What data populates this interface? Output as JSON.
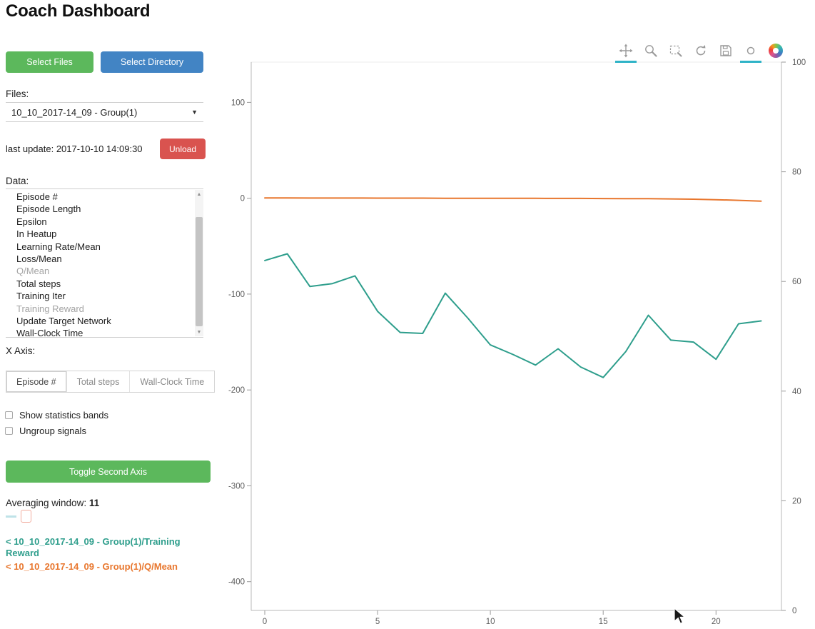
{
  "header": {
    "title": "Coach Dashboard"
  },
  "theme": {
    "green_button": "#5cb85c",
    "blue_button": "#4284c4",
    "red_button": "#d9534f",
    "accent_teal": "#2fb3c7",
    "series_teal": "#2e9e8c",
    "series_orange": "#e8762d"
  },
  "sidebar": {
    "select_files_label": "Select Files",
    "select_directory_label": "Select Directory",
    "files_label": "Files:",
    "files_selected": "10_10_2017-14_09 - Group(1)",
    "last_update": "last update: 2017-10-10 14:09:30",
    "unload_label": "Unload",
    "data_label": "Data:",
    "data_items": [
      {
        "label": "Episode #",
        "dimmed": false
      },
      {
        "label": "Episode Length",
        "dimmed": false
      },
      {
        "label": "Epsilon",
        "dimmed": false
      },
      {
        "label": "In Heatup",
        "dimmed": false
      },
      {
        "label": "Learning Rate/Mean",
        "dimmed": false
      },
      {
        "label": "Loss/Mean",
        "dimmed": false
      },
      {
        "label": "Q/Mean",
        "dimmed": true
      },
      {
        "label": "Total steps",
        "dimmed": false
      },
      {
        "label": "Training Iter",
        "dimmed": false
      },
      {
        "label": "Training Reward",
        "dimmed": true
      },
      {
        "label": "Update Target Network",
        "dimmed": false
      },
      {
        "label": "Wall-Clock Time",
        "dimmed": false
      }
    ],
    "x_axis_label": "X Axis:",
    "x_axis_options": [
      {
        "label": "Episode #",
        "active": true
      },
      {
        "label": "Total steps",
        "active": false
      },
      {
        "label": "Wall-Clock Time",
        "active": false
      }
    ],
    "checkboxes": [
      {
        "label": "Show statistics bands",
        "checked": false
      },
      {
        "label": "Ungroup signals",
        "checked": false
      }
    ],
    "toggle_second_axis_label": "Toggle Second Axis",
    "averaging_window_label": "Averaging window:",
    "averaging_window_value": "11",
    "legend": [
      {
        "label": "< 10_10_2017-14_09 - Group(1)/Training Reward",
        "color": "#2e9e8c"
      },
      {
        "label": "< 10_10_2017-14_09 - Group(1)/Q/Mean",
        "color": "#e8762d"
      }
    ]
  },
  "chart_toolbar": {
    "tools": [
      {
        "name": "pan",
        "active": true
      },
      {
        "name": "box-zoom",
        "active": false
      },
      {
        "name": "box-select",
        "active": false
      },
      {
        "name": "reset",
        "active": false
      },
      {
        "name": "save",
        "active": false
      },
      {
        "name": "hover",
        "active": true
      },
      {
        "name": "bokeh-logo",
        "active": false
      }
    ]
  },
  "chart_data": {
    "type": "line",
    "title": "",
    "xlabel": "",
    "ylabel": "",
    "grid": false,
    "legend_position": "sidebar",
    "x": [
      0,
      1,
      2,
      3,
      4,
      5,
      6,
      7,
      8,
      9,
      10,
      11,
      12,
      13,
      14,
      15,
      16,
      17,
      18,
      19,
      20,
      21,
      22
    ],
    "series": [
      {
        "name": "10_10_2017-14_09 - Group(1)/Training Reward",
        "color": "#2e9e8c",
        "axis": "left",
        "values": [
          -65,
          -58,
          -92,
          -89,
          -81,
          -118,
          -140,
          -141,
          -99,
          -125,
          -153,
          -163,
          -174,
          -157,
          -176,
          -187,
          -160,
          -122,
          -148,
          -150,
          -168,
          -131,
          -128
        ]
      },
      {
        "name": "10_10_2017-14_09 - Group(1)/Q/Mean",
        "color": "#e8762d",
        "axis": "left",
        "values": [
          0.3,
          0.3,
          0.2,
          0.2,
          0.2,
          0.1,
          0.1,
          0.1,
          0,
          0,
          0,
          -0.1,
          -0.1,
          -0.2,
          -0.2,
          -0.3,
          -0.4,
          -0.5,
          -0.7,
          -1,
          -1.5,
          -2.2,
          -3
        ]
      }
    ],
    "x_axis": {
      "ticks": [
        0,
        5,
        10,
        15,
        20
      ],
      "range": [
        -0.6,
        22.9
      ]
    },
    "left_axis": {
      "ticks": [
        100,
        0,
        -100,
        -200,
        -300,
        -400
      ],
      "range": [
        -430,
        142
      ]
    },
    "right_axis": {
      "ticks": [
        100,
        80,
        60,
        40,
        20,
        0
      ],
      "range": [
        0,
        100
      ]
    }
  }
}
